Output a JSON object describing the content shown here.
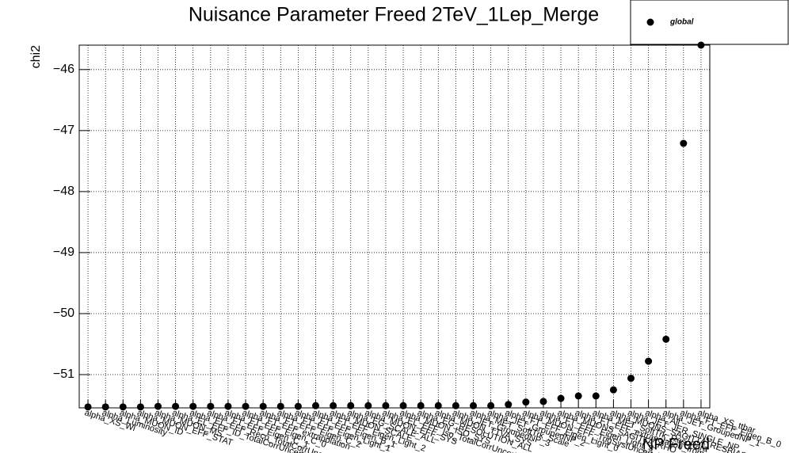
{
  "chart_data": {
    "type": "scatter",
    "title": "Nuisance Parameter Freed 2TeV_1Lep_Merge",
    "x_label": "NP Freed",
    "y_label": "chi2",
    "legend": "top-right",
    "grid": true,
    "categories": [
      "alpha_XS_Wl",
      "alpha_Luminosity",
      "alpha_MUON_ID",
      "alpha_MUON_EFF_STAT",
      "alpha_MUON_MS",
      "alpha_EL_EFF_ID_TotalCorrUncertainty",
      "alpha_EL_EFF_Reco_TotalCorrUncertainty",
      "alpha_FT_EFF_Eigen_C_1",
      "alpha_FT_EFF_Eigen_C_0",
      "alpha_FT_EFF_extrapolation",
      "alpha_FT_EFF_Eigen_C_2",
      "alpha_FT_EFF_Eigen_Light_1",
      "alpha_FT_EFF_Eigen_B_1",
      "alpha_FT_EFF_Eigen_Light_2",
      "alpha_MUON_SCALE",
      "alpha_EG_SCALE_ALL",
      "alpha_MUON_EFF_SYS",
      "alpha_EL_EFF_Iso_TotalCorrUncertainty",
      "alpha_MUON_ISO_SYS",
      "alpha_EG_RESOLUTION_ALL",
      "alpha_MUON_TTVA_SYS",
      "alpha_JET_GroupedNP_3",
      "alpha_MET_SoftTrk_Scale",
      "alpha_JET_GroupedNP_2",
      "alpha_FT_EFF_Eigen_Light_0",
      "alpha_MUON_EFF_TrigSystUncertainty",
      "alpha_FT_EFF_Eigen_Light_3",
      "alpha_MUONS_SAGITTA_RHO",
      "alpha_FT_EFF_extrapolation_from_charm",
      "alpha_MET_SoftTrk_ResoPara",
      "alpha_MUONS_SAGITTA_RESBIAS",
      "alpha_JET_JER_SINGLE_NP",
      "alpha_All",
      "alpha_JET_GroupedNP_1",
      "alpha_FT_EFF_Eigen_B_0",
      "alpha_XS_ttbar"
    ],
    "series": [
      {
        "name": "global",
        "color": "#000000",
        "values": [
          -51.53,
          -51.53,
          -51.53,
          -51.53,
          -51.52,
          -51.52,
          -51.52,
          -51.52,
          -51.52,
          -51.52,
          -51.52,
          -51.52,
          -51.52,
          -51.51,
          -51.51,
          -51.51,
          -51.51,
          -51.51,
          -51.51,
          -51.51,
          -51.51,
          -51.51,
          -51.51,
          -51.51,
          -51.49,
          -51.45,
          -51.44,
          -51.39,
          -51.35,
          -51.35,
          -51.25,
          -51.06,
          -50.78,
          -50.42,
          -47.21,
          -45.6
        ]
      }
    ],
    "ylim": [
      -51.545,
      -45.6
    ],
    "yticks": [
      {
        "value": -51,
        "label": "−51"
      },
      {
        "value": -50,
        "label": "−50"
      },
      {
        "value": -49,
        "label": "−49"
      },
      {
        "value": -48,
        "label": "−48"
      },
      {
        "value": -47,
        "label": "−47"
      },
      {
        "value": -46,
        "label": "−46"
      }
    ]
  }
}
